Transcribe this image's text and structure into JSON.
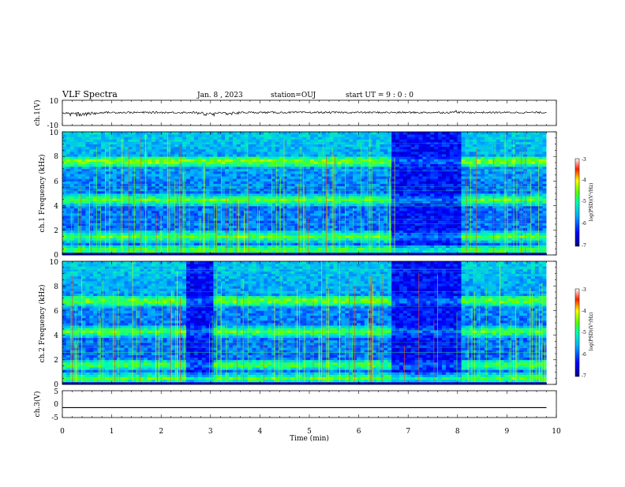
{
  "header": {
    "title": "VLF Spectra",
    "date": "Jan. 8 , 2023",
    "station": "station=OUJ",
    "start": "start UT = 9 : 0 : 0"
  },
  "chart_data": [
    {
      "type": "line",
      "name": "ch1-waveform",
      "ylabel": "ch.1(V)",
      "ylim": [
        -10,
        10
      ],
      "yticks": [
        "10",
        "-10"
      ],
      "x": [
        0,
        0.1,
        1.0,
        1.8,
        2.5,
        3.0,
        4.0,
        5.0,
        6.0,
        7.0,
        8.0,
        8.1,
        9.0,
        9.8
      ],
      "y": [
        0.3,
        -3.0,
        0.2,
        0.8,
        0.3,
        -2.0,
        0.3,
        0.3,
        0.4,
        0.3,
        1.5,
        0.3,
        0.3,
        0.3
      ]
    },
    {
      "type": "heatmap",
      "name": "ch1-spectrogram",
      "ylabel": "ch.1 Frequency (kHz)",
      "ylim": [
        0,
        10
      ],
      "yticks": [
        "0",
        "2",
        "4",
        "6",
        "8",
        "10"
      ],
      "colorbar_label": "log(PSD)(V²/Hz)",
      "colorbar_ticks": [
        "-3",
        "-4",
        "-5",
        "-6",
        "-7"
      ],
      "bands_khz": [
        0.4,
        1.5,
        4.5,
        7.6
      ],
      "quiet_segments_min": [
        [
          6.65,
          8.05
        ]
      ]
    },
    {
      "type": "heatmap",
      "name": "ch2-spectrogram",
      "ylabel": "ch.2 Frequency (kHz)",
      "ylim": [
        0,
        10
      ],
      "yticks": [
        "0",
        "2",
        "4",
        "6",
        "8",
        "10"
      ],
      "colorbar_label": "log(PSD)(V²/Hz)",
      "colorbar_ticks": [
        "-3",
        "-4",
        "-5",
        "-6",
        "-7"
      ],
      "bands_khz": [
        0.5,
        1.6,
        4.3,
        6.8
      ],
      "quiet_segments_min": [
        [
          2.5,
          3.0
        ],
        [
          6.65,
          8.05
        ]
      ]
    },
    {
      "type": "line",
      "name": "ch3-waveform",
      "ylabel": "ch.3(V)",
      "ylim": [
        -5,
        5
      ],
      "yticks": [
        "5",
        "0",
        "-5"
      ],
      "x": [
        0,
        9.8
      ],
      "y": [
        -1.3,
        -1.3
      ]
    }
  ],
  "xaxis": {
    "label": "Time (min)",
    "range": [
      0,
      10
    ],
    "ticks": [
      "0",
      "1",
      "2",
      "3",
      "4",
      "5",
      "6",
      "7",
      "8",
      "9",
      "10"
    ]
  }
}
